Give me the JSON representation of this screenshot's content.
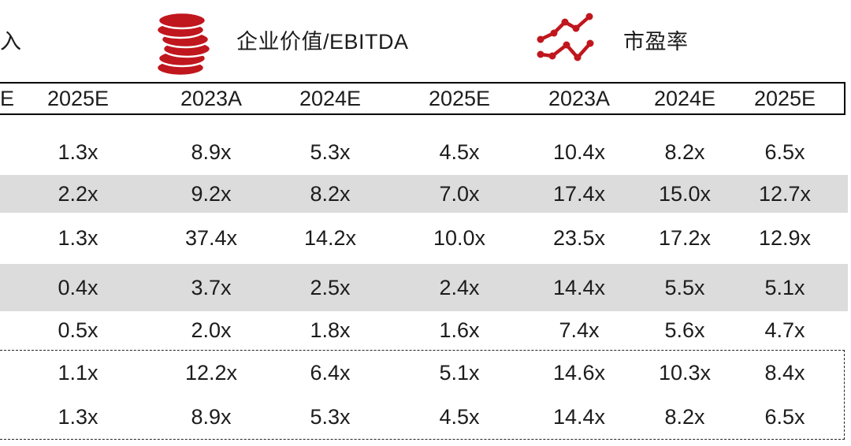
{
  "legend": {
    "partial_label": "入",
    "items": [
      {
        "icon": "coin-stack-icon",
        "label": "企业价值/EBITDA"
      },
      {
        "icon": "line-chart-icon",
        "label": "市盈率"
      }
    ]
  },
  "table": {
    "headers": [
      "E",
      "2025E",
      "2023A",
      "2024E",
      "2025E",
      "2023A",
      "2024E",
      "2025E"
    ],
    "main_rows": [
      [
        "",
        "1.3x",
        "8.9x",
        "5.3x",
        "4.5x",
        "10.4x",
        "8.2x",
        "6.5x"
      ],
      [
        "",
        "2.2x",
        "9.2x",
        "8.2x",
        "7.0x",
        "17.4x",
        "15.0x",
        "12.7x"
      ],
      [
        "",
        "1.3x",
        "37.4x",
        "14.2x",
        "10.0x",
        "23.5x",
        "17.2x",
        "12.9x"
      ],
      [
        "",
        "0.4x",
        "3.7x",
        "2.5x",
        "2.4x",
        "14.4x",
        "5.5x",
        "5.1x"
      ],
      [
        "",
        "0.5x",
        "2.0x",
        "1.8x",
        "1.6x",
        "7.4x",
        "5.6x",
        "4.7x"
      ]
    ],
    "summary_rows": [
      [
        "",
        "1.1x",
        "12.2x",
        "6.4x",
        "5.1x",
        "14.6x",
        "10.3x",
        "8.4x"
      ],
      [
        "",
        "1.3x",
        "8.9x",
        "5.3x",
        "4.5x",
        "14.4x",
        "8.2x",
        "6.5x"
      ]
    ]
  },
  "colors": {
    "accent_red": "#c0161d",
    "stripe_gray": "#dcdcdc",
    "text_black": "#1c1c1c"
  }
}
